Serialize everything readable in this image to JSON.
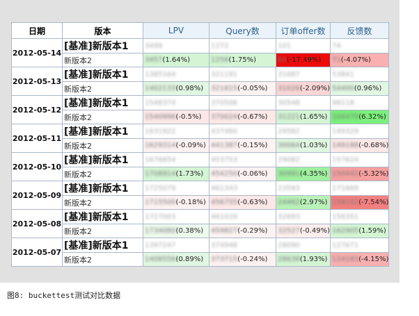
{
  "header": {
    "date": "日期",
    "version": "版本",
    "metrics": [
      "LPV",
      "Query数",
      "订单offer数",
      "反馈数"
    ]
  },
  "colors": {
    "light_green": "#ccf5cc",
    "green": "#7bef7b",
    "light_red": "#fde0e0",
    "red_mid": "#f9a8a8",
    "red": "#ee0000"
  },
  "rows": [
    {
      "date": "2012-05-14",
      "base_label": "[基准]新版本1",
      "new_label": "新版本2",
      "base": [
        "3499",
        "1272",
        "101",
        "74"
      ],
      "cells": [
        {
          "num": "3457",
          "pct": "(1.64%)",
          "bg": "#d4f5d4"
        },
        {
          "num": "1256",
          "pct": "(1.75%)",
          "bg": "#d4f5d4"
        },
        {
          "num": "83",
          "pct": "(-17.49%)",
          "bg": "#ee0a0a"
        },
        {
          "num": "71",
          "pct": "(-4.07%)",
          "bg": "#f9b0b0"
        }
      ]
    },
    {
      "date": "2012-05-13",
      "base_label": "[基准]新版本1",
      "new_label": "新版本2",
      "base": [
        "1385164",
        "321191",
        "31687",
        "53841"
      ],
      "cells": [
        {
          "num": "1402133",
          "pct": "(0.98%)",
          "bg": "#e1f7e1"
        },
        {
          "num": "321815",
          "pct": "(-0.05%)",
          "bg": "#fdf2f2"
        },
        {
          "num": "31026",
          "pct": "(-2.09%)",
          "bg": "#fbd6d6"
        },
        {
          "num": "54400",
          "pct": "(0.96%)",
          "bg": "#e1f7e1"
        }
      ]
    },
    {
      "date": "2012-05-12",
      "base_label": "[基准]新版本1",
      "new_label": "新版本2",
      "base": [
        "1548374",
        "370506",
        "30548",
        "98118"
      ],
      "cells": [
        {
          "num": "1540996",
          "pct": "(-0.5%)",
          "bg": "#fde8e8"
        },
        {
          "num": "370024",
          "pct": "(-0.67%)",
          "bg": "#fde8e8"
        },
        {
          "num": "31221",
          "pct": "(1.65%)",
          "bg": "#d4f5d4"
        },
        {
          "num": "104479",
          "pct": "(6.32%)",
          "bg": "#7bef7b"
        }
      ]
    },
    {
      "date": "2012-05-11",
      "base_label": "[基准]新版本1",
      "new_label": "新版本2",
      "base": [
        "1631922",
        "437460",
        "29582",
        "149329"
      ],
      "cells": [
        {
          "num": "1629314",
          "pct": "(-0.09%)",
          "bg": "#fdf2f2"
        },
        {
          "num": "441387",
          "pct": "(-0.15%)",
          "bg": "#fdf2f2"
        },
        {
          "num": "30064",
          "pct": "(1.03%)",
          "bg": "#e1f7e1"
        },
        {
          "num": "149188",
          "pct": "(-0.68%)",
          "bg": "#fde8e8"
        }
      ]
    },
    {
      "date": "2012-05-10",
      "base_label": "[基准]新版本1",
      "new_label": "新版本2",
      "base": [
        "1676654",
        "453753",
        "29082",
        "157624"
      ],
      "cells": [
        {
          "num": "1708914",
          "pct": "(1.73%)",
          "bg": "#d4f5d4"
        },
        {
          "num": "454250",
          "pct": "(-0.06%)",
          "bg": "#fdf2f2"
        },
        {
          "num": "30991",
          "pct": "(4.35%)",
          "bg": "#9ff09f"
        },
        {
          "num": "150442",
          "pct": "(-5.32%)",
          "bg": "#f7a0a0"
        }
      ]
    },
    {
      "date": "2012-05-09",
      "base_label": "[基准]新版本1",
      "new_label": "新版本2",
      "base": [
        "1725079",
        "461343",
        "23593",
        "171669"
      ],
      "cells": [
        {
          "num": "1715500",
          "pct": "(-0.18%)",
          "bg": "#fdf2f2"
        },
        {
          "num": "456755",
          "pct": "(-0.63%)",
          "bg": "#fde8e8"
        },
        {
          "num": "24462",
          "pct": "(2.97%)",
          "bg": "#b9f2b9"
        },
        {
          "num": "158142",
          "pct": "(-7.54%)",
          "bg": "#f28080"
        }
      ]
    },
    {
      "date": "2012-05-08",
      "base_label": "[基准]新版本1",
      "new_label": "新版本2",
      "base": [
        "1727003",
        "461029",
        "32693",
        "156351"
      ],
      "cells": [
        {
          "num": "1734080",
          "pct": "(0.38%)",
          "bg": "#edf9ed"
        },
        {
          "num": "459827",
          "pct": "(-0.29%)",
          "bg": "#fdf2f2"
        },
        {
          "num": "32527",
          "pct": "(-0.49%)",
          "bg": "#fdeeee"
        },
        {
          "num": "162905",
          "pct": "(1.59%)",
          "bg": "#d4f5d4"
        }
      ]
    },
    {
      "date": "2012-05-07",
      "base_label": "[基准]新版本1",
      "new_label": "新版本2",
      "base": [
        "1397247",
        "374948",
        "28090",
        "127671"
      ],
      "cells": [
        {
          "num": "1408556",
          "pct": "(0.89%)",
          "bg": "#e1f7e1"
        },
        {
          "num": "373715",
          "pct": "(-0.24%)",
          "bg": "#fdf2f2"
        },
        {
          "num": "28638",
          "pct": "(1.93%)",
          "bg": "#d4f5d4"
        },
        {
          "num": "124183",
          "pct": "(-4.15%)",
          "bg": "#f9b0b0"
        }
      ]
    }
  ],
  "caption": "图8: buckettest测试对比数据"
}
